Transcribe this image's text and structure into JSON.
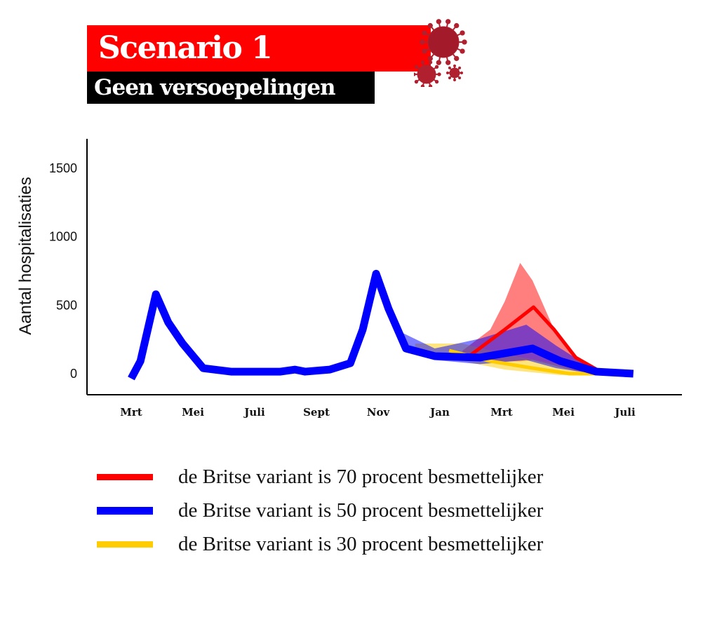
{
  "header": {
    "title": "Scenario 1",
    "subtitle": "Geen versoepelingen",
    "icon": "coronavirus-icon"
  },
  "colors": {
    "red": "#ff0000",
    "blue": "#0000ff",
    "yellow": "#ffcc00",
    "title_bg": "#ff0000",
    "subtitle_bg": "#000000"
  },
  "chart_data": {
    "type": "line",
    "title": "",
    "xlabel": "",
    "ylabel": "Aantal hospitalisaties",
    "ylim": [
      -150,
      1700
    ],
    "yticks": [
      0,
      500,
      1000,
      1500
    ],
    "xticks": [
      {
        "date": "2020-03-01",
        "label": "Mrt"
      },
      {
        "date": "2020-05-01",
        "label": "Mei"
      },
      {
        "date": "2020-07-01",
        "label": "Juli"
      },
      {
        "date": "2020-09-01",
        "label": "Sept"
      },
      {
        "date": "2020-11-01",
        "label": "Nov"
      },
      {
        "date": "2021-01-01",
        "label": "Jan"
      },
      {
        "date": "2021-03-01",
        "label": "Mrt"
      },
      {
        "date": "2021-05-01",
        "label": "Mei"
      },
      {
        "date": "2021-07-01",
        "label": "Juli"
      }
    ],
    "grid": false,
    "legend_position": "bottom",
    "series": [
      {
        "name": "de Britse variant is 70 procent besmettelijker",
        "color": "#ff0000",
        "x": [
          "2021-01-28",
          "2021-03-04",
          "2021-04-02",
          "2021-04-22",
          "2021-05-13",
          "2021-06-07"
        ],
        "y": [
          120,
          322,
          486,
          322,
          118,
          15
        ],
        "band": {
          "x": [
            "2021-01-23",
            "2021-02-20",
            "2021-03-04",
            "2021-03-19",
            "2021-04-01",
            "2021-04-22",
            "2021-05-13",
            "2021-06-07"
          ],
          "upper": [
            169,
            322,
            527,
            809,
            681,
            322,
            118,
            15
          ],
          "lower": [
            110,
            100,
            90,
            90,
            100,
            60,
            20,
            10
          ]
        }
      },
      {
        "name": "de Britse variant is 30 procent besmettelijker",
        "color": "#ffcc00",
        "x": [
          "2021-01-10",
          "2021-02-20",
          "2021-04-01",
          "2021-05-07",
          "2021-06-03"
        ],
        "y": [
          169,
          92,
          41,
          0,
          0
        ],
        "band": {
          "x": [
            "2020-12-07",
            "2021-01-23",
            "2021-03-04",
            "2021-04-28",
            "2021-06-03"
          ],
          "upper": [
            220,
            220,
            143,
            67,
            10
          ],
          "lower": [
            143,
            92,
            30,
            -10,
            -10
          ]
        }
      },
      {
        "name": "de Britse variant is 50 procent besmettelijker",
        "color": "#0000ff",
        "x": [
          "2020-03-01",
          "2020-03-10",
          "2020-03-25",
          "2020-04-07",
          "2020-04-21",
          "2020-05-11",
          "2020-06-08",
          "2020-07-26",
          "2020-08-10",
          "2020-08-20",
          "2020-09-14",
          "2020-10-04",
          "2020-10-16",
          "2020-10-29",
          "2020-11-11",
          "2020-11-28",
          "2020-12-26",
          "2021-02-10",
          "2021-04-01",
          "2021-04-28",
          "2021-06-03",
          "2021-07-09"
        ],
        "y": [
          -35,
          92,
          580,
          375,
          220,
          40,
          15,
          15,
          30,
          15,
          30,
          77,
          322,
          730,
          476,
          184,
          128,
          118,
          184,
          92,
          15,
          0
        ],
        "band": {
          "x": [
            "2020-11-25",
            "2020-12-26",
            "2021-02-10",
            "2021-03-25",
            "2021-04-24",
            "2021-05-26",
            "2021-06-07"
          ],
          "upper": [
            297,
            184,
            256,
            358,
            205,
            51,
            15
          ],
          "lower": [
            169,
            100,
            70,
            100,
            40,
            5,
            0
          ]
        }
      }
    ],
    "legend_order": [
      0,
      2,
      1
    ]
  },
  "legend": [
    {
      "label": "de Britse variant is 70 procent besmettelijker",
      "color": "#ff0000"
    },
    {
      "label": "de Britse variant is 50 procent besmettelijker",
      "color": "#0000ff"
    },
    {
      "label": "de Britse variant is 30 procent besmettelijker",
      "color": "#ffcc00"
    }
  ]
}
